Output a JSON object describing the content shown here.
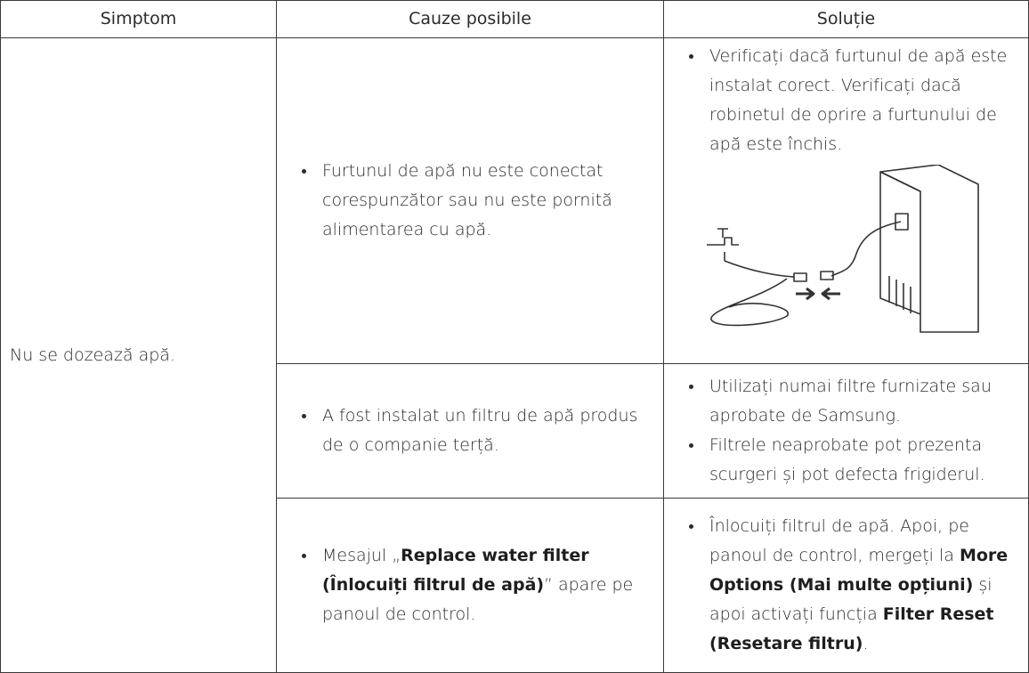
{
  "table": {
    "header": [
      "Simptom",
      "Cauze posibile",
      "Soluție"
    ],
    "symptom": "Nu se dozează apă.",
    "rows": [
      {
        "causes": [
          [
            {
              "text": "Furtunul de apă nu este conectat corespunzător sau nu este pornită alimentarea cu apă."
            }
          ]
        ],
        "solutions": [
          [
            {
              "text": "Verificați dacă furtunul de apă este instalat corect. Verificați dacă robinetul de oprire a furtunului de apă este închis."
            }
          ]
        ]
      },
      {
        "causes": [
          [
            {
              "text": "A fost instalat un filtru de apă produs de o companie terță."
            }
          ]
        ],
        "solutions": [
          [
            {
              "text": "Utilizați numai filtre furnizate sau aprobate de Samsung."
            }
          ],
          [
            {
              "text": "Filtrele neaprobate pot prezenta scurgeri și pot defecta frigiderul."
            }
          ]
        ]
      },
      {
        "causes": [
          [
            {
              "text": "Mesajul „"
            },
            {
              "text": "Replace water filter (Înlocuiți filtrul de apă)",
              "bold": true
            },
            {
              "text": "” apare pe panoul de control."
            }
          ]
        ],
        "solutions": [
          [
            {
              "text": "Înlocuiți filtrul de apă. Apoi, pe panoul de control, mergeți la "
            },
            {
              "text": "More Options (Mai multe opțiuni)",
              "bold": true
            },
            {
              "text": " și apoi activați funcția "
            },
            {
              "text": "Filter Reset (Resetare filtru)",
              "bold": true
            },
            {
              "text": "."
            }
          ]
        ]
      }
    ]
  }
}
